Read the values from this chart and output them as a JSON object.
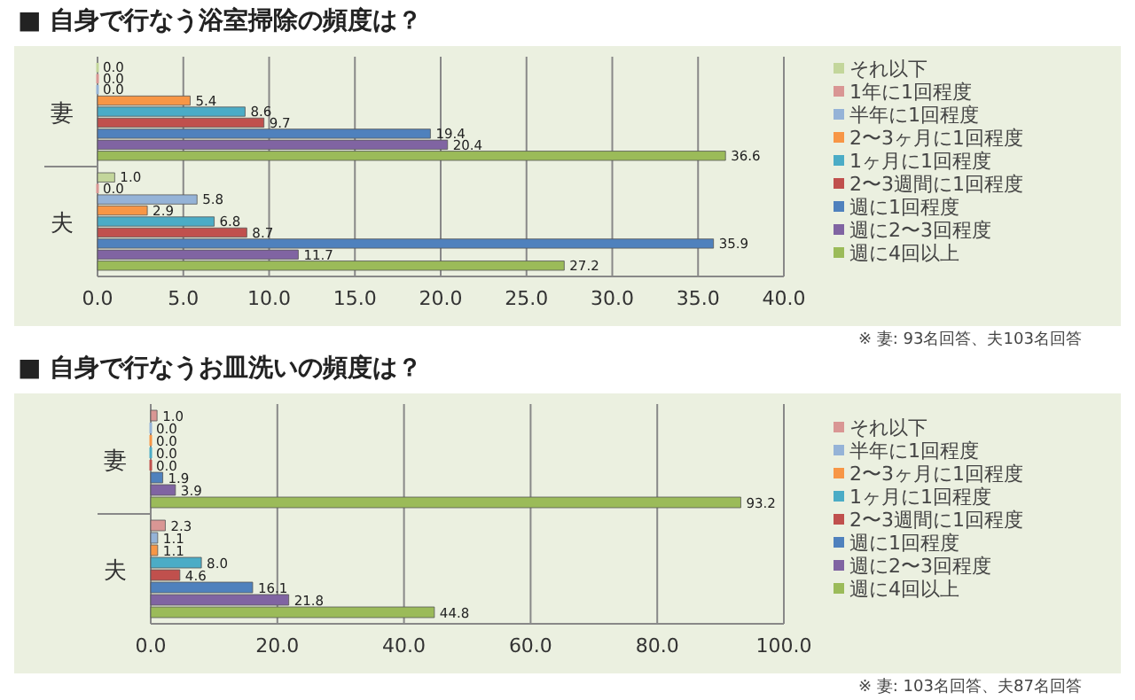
{
  "chart_data": [
    {
      "type": "bar",
      "orientation": "horizontal",
      "title": "■ 自身で行なう浴室掃除の頻度は？",
      "categories": [
        "妻",
        "夫"
      ],
      "series": [
        {
          "name": "それ以下",
          "color": "#c3d69b",
          "values": [
            0.0,
            1.0
          ],
          "value_labels": [
            "0.0",
            "1.0"
          ]
        },
        {
          "name": "1年に1回程度",
          "color": "#d99694",
          "values": [
            0.0,
            0.0
          ],
          "value_labels": [
            "0.0",
            "0.0"
          ]
        },
        {
          "name": "半年に1回程度",
          "color": "#95b3d7",
          "values": [
            0.0,
            5.8
          ],
          "value_labels": [
            "0.0",
            "5.8"
          ]
        },
        {
          "name": "2〜3ヶ月に1回程度",
          "color": "#f79646",
          "values": [
            5.4,
            2.9
          ],
          "value_labels": [
            "5.4",
            "2.9"
          ]
        },
        {
          "name": "1ヶ月に1回程度",
          "color": "#4bacc6",
          "values": [
            8.6,
            6.8
          ],
          "value_labels": [
            "8.6",
            "6.8"
          ]
        },
        {
          "name": "2〜3週間に1回程度",
          "color": "#c0504d",
          "values": [
            9.7,
            8.7
          ],
          "value_labels": [
            "9.7",
            "8.7"
          ]
        },
        {
          "name": "週に1回程度",
          "color": "#4f81bd",
          "values": [
            19.4,
            35.9
          ],
          "value_labels": [
            "19.4",
            "35.9"
          ]
        },
        {
          "name": "週に2〜3回程度",
          "color": "#8064a2",
          "values": [
            20.4,
            11.7
          ],
          "value_labels": [
            "20.4",
            "11.7"
          ]
        },
        {
          "name": "週に4回以上",
          "color": "#9bbb59",
          "values": [
            36.6,
            27.2
          ],
          "value_labels": [
            "36.6",
            "27.2"
          ]
        }
      ],
      "xlim": [
        0,
        40
      ],
      "xticks": [
        {
          "value": 0,
          "label": "0.0"
        },
        {
          "value": 5,
          "label": "5.0"
        },
        {
          "value": 10,
          "label": "10.0"
        },
        {
          "value": 15,
          "label": "15.0"
        },
        {
          "value": 20,
          "label": "20.0"
        },
        {
          "value": 25,
          "label": "25.0"
        },
        {
          "value": 30,
          "label": "30.0"
        },
        {
          "value": 35,
          "label": "35.0"
        },
        {
          "value": 40,
          "label": "40.0"
        }
      ],
      "grid": "x",
      "legend": "right",
      "annotations": [
        "※ 妻: 93名回答、夫103名回答"
      ]
    },
    {
      "type": "bar",
      "orientation": "horizontal",
      "title": "■ 自身で行なうお皿洗いの頻度は？",
      "categories": [
        "妻",
        "夫"
      ],
      "series": [
        {
          "name": "それ以下",
          "color": "#d99694",
          "values": [
            1.0,
            2.3
          ],
          "value_labels": [
            "1.0",
            "2.3"
          ]
        },
        {
          "name": "半年に1回程度",
          "color": "#95b3d7",
          "values": [
            0.0,
            1.1
          ],
          "value_labels": [
            "0.0",
            "1.1"
          ]
        },
        {
          "name": "2〜3ヶ月に1回程度",
          "color": "#f79646",
          "values": [
            0.0,
            1.1
          ],
          "value_labels": [
            "0.0",
            "1.1"
          ]
        },
        {
          "name": "1ヶ月に1回程度",
          "color": "#4bacc6",
          "values": [
            0.0,
            8.0
          ],
          "value_labels": [
            "0.0",
            "8.0"
          ]
        },
        {
          "name": "2〜3週間に1回程度",
          "color": "#c0504d",
          "values": [
            0.0,
            4.6
          ],
          "value_labels": [
            "0.0",
            "4.6"
          ]
        },
        {
          "name": "週に1回程度",
          "color": "#4f81bd",
          "values": [
            1.9,
            16.1
          ],
          "value_labels": [
            "1.9",
            "16.1"
          ]
        },
        {
          "name": "週に2〜3回程度",
          "color": "#8064a2",
          "values": [
            3.9,
            21.8
          ],
          "value_labels": [
            "3.9",
            "21.8"
          ]
        },
        {
          "name": "週に4回以上",
          "color": "#9bbb59",
          "values": [
            93.2,
            44.8
          ],
          "value_labels": [
            "93.2",
            "44.8"
          ]
        }
      ],
      "xlim": [
        0,
        100
      ],
      "xticks": [
        {
          "value": 0,
          "label": "0.0"
        },
        {
          "value": 20,
          "label": "20.0"
        },
        {
          "value": 40,
          "label": "40.0"
        },
        {
          "value": 60,
          "label": "60.0"
        },
        {
          "value": 80,
          "label": "80.0"
        },
        {
          "value": 100,
          "label": "100.0"
        }
      ],
      "grid": "x",
      "legend": "right",
      "annotations": [
        "※ 妻: 103名回答、夫87名回答"
      ]
    }
  ]
}
